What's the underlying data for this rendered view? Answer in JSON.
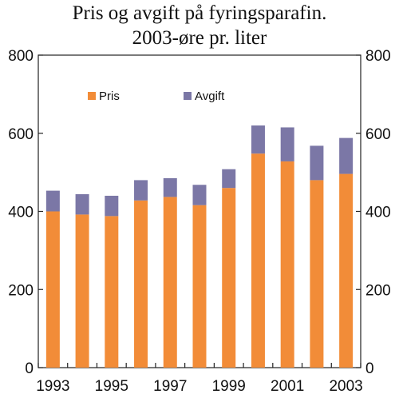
{
  "chart_data": {
    "type": "bar",
    "stacked": true,
    "title": "Pris og avgift på fyringsparafin.",
    "subtitle": "2003-øre pr. liter",
    "categories": [
      "1993",
      "1994",
      "1995",
      "1996",
      "1997",
      "1998",
      "1999",
      "2000",
      "2001",
      "2002",
      "2003"
    ],
    "x_tick_labels": [
      "1993",
      "1995",
      "1997",
      "1999",
      "2001",
      "2003"
    ],
    "series": [
      {
        "name": "Pris",
        "color": "#F28C38",
        "values": [
          400,
          392,
          388,
          428,
          437,
          416,
          460,
          548,
          528,
          480,
          496
        ]
      },
      {
        "name": "Avgift",
        "color": "#7B77A6",
        "values": [
          53,
          52,
          52,
          52,
          48,
          52,
          48,
          72,
          87,
          88,
          92
        ]
      }
    ],
    "ylim": [
      0,
      800
    ],
    "yticks": [
      0,
      200,
      400,
      600,
      800
    ],
    "y_axis_sides": [
      "left",
      "right"
    ],
    "grid": false,
    "legend": "top-left inside plot"
  }
}
